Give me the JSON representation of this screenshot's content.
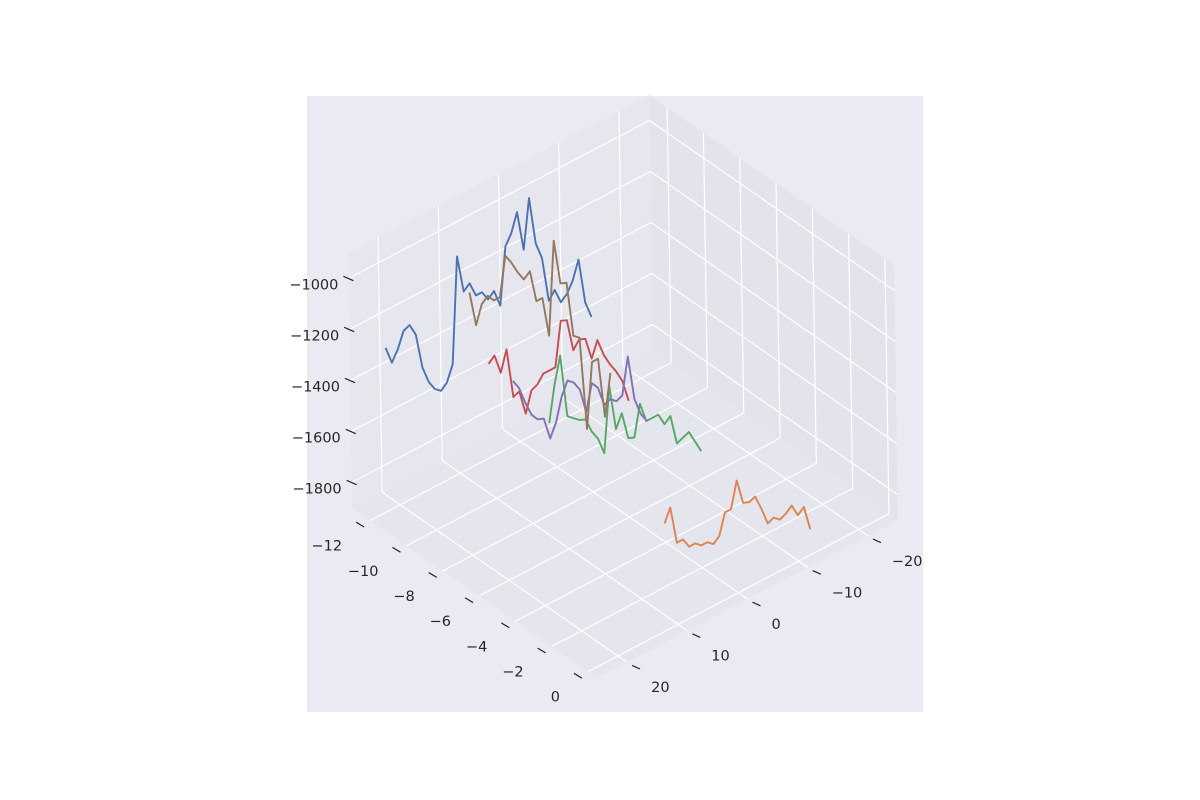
{
  "chart_data": {
    "type": "line",
    "projection": "3d",
    "title": "",
    "xlabel": "",
    "ylabel": "",
    "zlabel": "",
    "grid": true,
    "style": "seaborn-darkgrid",
    "xlim": [
      -25,
      25
    ],
    "ylim": [
      -13,
      0.5
    ],
    "zlim": [
      -1900,
      -900
    ],
    "x_ticks": [
      -20,
      -10,
      0,
      10,
      20
    ],
    "x_tick_labels": [
      "−20",
      "−10",
      "0",
      "10",
      "20"
    ],
    "y_ticks": [
      -12,
      -10,
      -8,
      -6,
      -4,
      -2,
      0
    ],
    "y_tick_labels": [
      "−12",
      "−10",
      "−8",
      "−6",
      "−4",
      "−2",
      "0"
    ],
    "z_ticks": [
      -1800,
      -1600,
      -1400,
      -1200,
      -1000
    ],
    "z_tick_labels": [
      "−1800",
      "−1600",
      "−1400",
      "−1200",
      "−1000"
    ],
    "x": [
      -12,
      -11,
      -10,
      -9,
      -8,
      -7,
      -6,
      -5,
      -4,
      -3,
      -2,
      -1,
      0,
      1,
      2,
      3,
      4,
      5,
      6,
      7,
      8,
      9,
      10,
      11,
      12,
      13,
      14,
      15,
      16,
      17,
      18,
      19,
      20,
      21,
      22
    ],
    "series": [
      {
        "color": "#4c72b0",
        "y": -12,
        "z": [
          -1560,
          -1490,
          -1310,
          -1380,
          -1420,
          -1440,
          -1380,
          -1410,
          -1230,
          -1160,
          -970,
          -1160,
          -1000,
          -1070,
          -1110,
          -1330,
          -1260,
          -1280,
          -1240,
          -1240,
          -1180,
          -1200,
          -1050,
          -1460,
          -1520,
          -1540,
          -1520,
          -1480,
          -1410,
          -1270,
          -1220,
          -1230,
          -1290,
          -1330,
          -1260
        ]
      },
      {
        "color": "#dd8452",
        "y": 0,
        "z": [
          -1800,
          -1700,
          -1720,
          -1670,
          -1690,
          -1700,
          -1680,
          -1690,
          -1620,
          -1560,
          -1570,
          -1560,
          -1460,
          -1560,
          -1560,
          -1640,
          -1660,
          -1640,
          -1640,
          -1620,
          -1620,
          -1580,
          -1580,
          -1430,
          -1480
        ]
      },
      {
        "color": "#55a868",
        "y": -6,
        "z": [
          -1790,
          -1740,
          -1690,
          -1700,
          -1710,
          -1590,
          -1610,
          -1560,
          -1560,
          -1560,
          -1480,
          -1600,
          -1590,
          -1480,
          -1530,
          -1350,
          -1600,
          -1530,
          -1490,
          -1430,
          -1420,
          -1400,
          -1380,
          -1130,
          -1230,
          -1370
        ]
      },
      {
        "color": "#c44e52",
        "y": -10,
        "z": [
          -1790,
          -1700,
          -1650,
          -1610,
          -1560,
          -1490,
          -1550,
          -1460,
          -1450,
          -1480,
          -1350,
          -1340,
          -1510,
          -1510,
          -1510,
          -1540,
          -1550,
          -1630,
          -1530,
          -1540,
          -1340,
          -1420,
          -1340,
          -1360
        ]
      },
      {
        "color": "#8172b3",
        "y": -9,
        "z": [
          -1820,
          -1780,
          -1710,
          -1530,
          -1670,
          -1680,
          -1660,
          -1670,
          -1590,
          -1560,
          -1660,
          -1560,
          -1520,
          -1500,
          -1550,
          -1640,
          -1690,
          -1600,
          -1590,
          -1560,
          -1500,
          -1430,
          -1390
        ]
      },
      {
        "color": "#937860",
        "y": -11,
        "z": [
          -1730,
          -1890,
          -1650,
          -1650,
          -1900,
          -1530,
          -1510,
          -1290,
          -1280,
          -1100,
          -1460,
          -1300,
          -1300,
          -1170,
          -1190,
          -1150,
          -1100,
          -1060,
          -1210,
          -1210,
          -1180,
          -1200,
          -1270,
          -1130
        ]
      }
    ]
  }
}
